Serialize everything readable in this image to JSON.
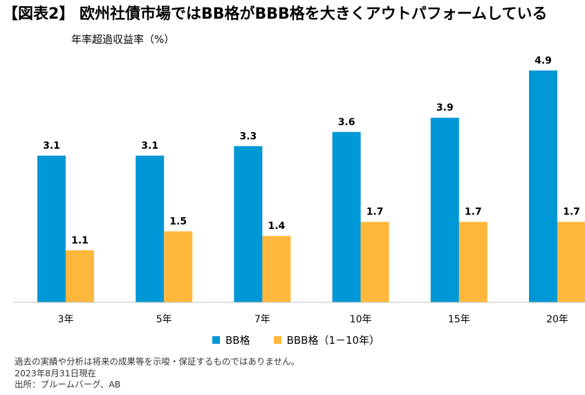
{
  "header": {
    "title": "【図表2】 欧州社債市場ではBB格がBBB格を大きくアウトパフォームしている",
    "subtitle": "年率超過収益率（%）"
  },
  "chart_data": {
    "type": "bar",
    "title": "",
    "ylabel": "年率超過収益率（%）",
    "xlabel": "",
    "categories": [
      "3年",
      "5年",
      "7年",
      "10年",
      "15年",
      "20年"
    ],
    "series": [
      {
        "name": "BB格",
        "color": "#0097D6",
        "values": [
          3.1,
          3.1,
          3.3,
          3.6,
          3.9,
          4.9
        ]
      },
      {
        "name": "BBB格（1－10年）",
        "color": "#FFB83C",
        "values": [
          1.1,
          1.5,
          1.4,
          1.7,
          1.7,
          1.7
        ]
      }
    ],
    "ylim": [
      0,
      5
    ],
    "grid": false,
    "legend": "bottom-center"
  },
  "notes": {
    "line1": "過去の実績や分析は将来の成果等を示唆・保証するものではありません。",
    "line2": "2023年8月31日現在",
    "line3": "出所：ブルームバーグ、AB"
  }
}
